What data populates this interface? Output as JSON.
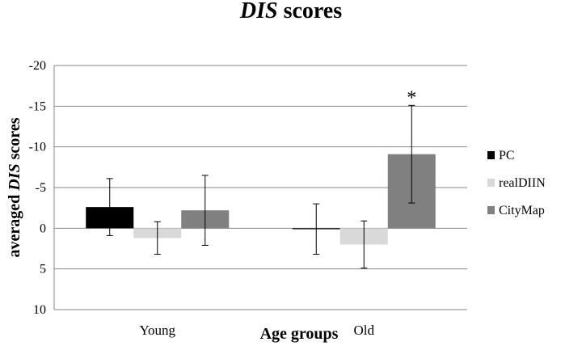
{
  "chart_data": {
    "type": "bar",
    "title": {
      "italic": "DIS",
      "rest": " scores"
    },
    "ylabel": {
      "prefix": "averaged ",
      "italic": "DIS",
      "suffix": " scores"
    },
    "xlabel": "Age groups",
    "ylim": [
      -20,
      10
    ],
    "y_inverted": true,
    "yticks": [
      -20,
      -15,
      -10,
      -5,
      0,
      5,
      10
    ],
    "ytick_labels": [
      "-20",
      "-15",
      "-10",
      "-5",
      "0",
      "5",
      "10"
    ],
    "categories": [
      "Young",
      "Old"
    ],
    "series": [
      {
        "name": "PC",
        "color": "#000000",
        "values": [
          -2.6,
          0.1
        ],
        "errors": [
          3.5,
          3.1
        ]
      },
      {
        "name": "realDIIN",
        "color": "#d9d9d9",
        "values": [
          1.2,
          2.0
        ],
        "errors": [
          2.0,
          2.9
        ]
      },
      {
        "name": "CityMap",
        "color": "#808080",
        "values": [
          -2.2,
          -9.1
        ],
        "errors": [
          4.3,
          6.0
        ]
      }
    ],
    "annotations": [
      {
        "text": "*",
        "category": "Old",
        "series": "CityMap"
      }
    ],
    "legend_position": "right",
    "grid": true
  }
}
